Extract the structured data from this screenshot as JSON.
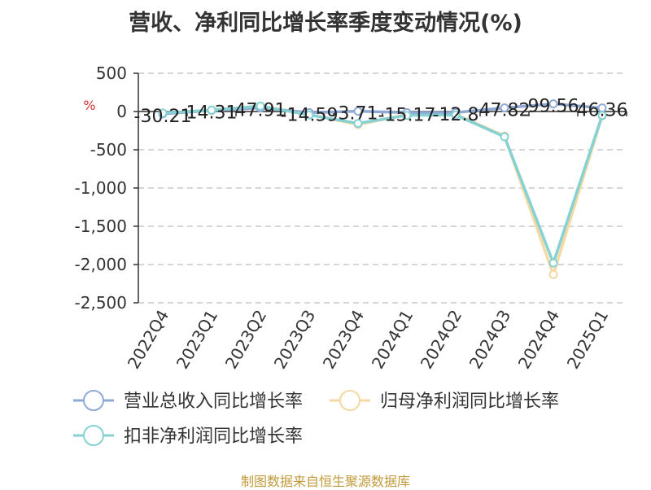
{
  "title": "营收、净利同比增长率季度变动情况(%)",
  "source": "制图数据来自恒生聚源数据库",
  "chart_data": {
    "type": "line",
    "title": "营收、净利同比增长率季度变动情况(%)",
    "ylabel": "%",
    "ylim": [
      -2500,
      500
    ],
    "yticks": [
      500,
      0,
      -500,
      -1000,
      -1500,
      -2000,
      -2500
    ],
    "ytick_labels": [
      "500",
      "0",
      "-500",
      "-1,000",
      "-1,500",
      "-2,000",
      "-2,500"
    ],
    "grid": true,
    "legend": "bottom",
    "categories": [
      "2022Q4",
      "2023Q1",
      "2023Q2",
      "2023Q3",
      "2023Q4",
      "2024Q1",
      "2024Q2",
      "2024Q3",
      "2024Q4",
      "2025Q1"
    ],
    "series": [
      {
        "name": "营业总收入同比增长率",
        "color": "#8fa9d6",
        "values": [
          -30.21,
          14.31,
          47.91,
          -14.59,
          3.71,
          -15.17,
          -12.8,
          47.82,
          99.56,
          46.36
        ],
        "labels": [
          "-30.21",
          "14.31",
          "47.91",
          "-14.59",
          "3.71",
          "-15.17",
          "-12.8",
          "47.82",
          "99.56",
          "46.36"
        ]
      },
      {
        "name": "归母净利润同比增长率",
        "color": "#f5d9a3",
        "values": [
          -25,
          20,
          70,
          -40,
          -170,
          -40,
          -35,
          -320,
          -2130,
          -60
        ]
      },
      {
        "name": "扣非净利润同比增长率",
        "color": "#86d1d3",
        "values": [
          -20,
          18,
          70,
          -45,
          -155,
          -50,
          -45,
          -330,
          -1980,
          -50
        ]
      }
    ]
  }
}
